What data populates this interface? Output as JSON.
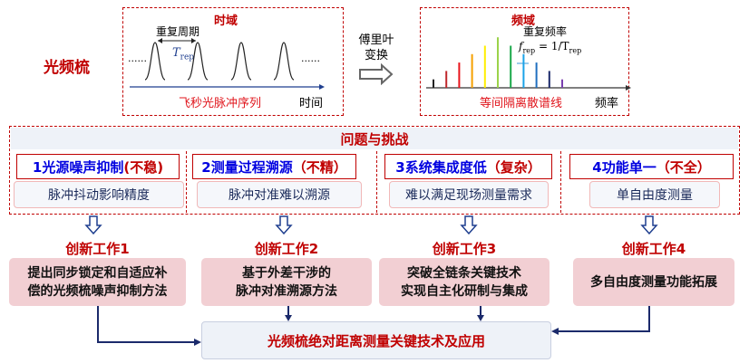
{
  "comb_label": "光频梳",
  "time_domain": {
    "title": "时域",
    "period_label": "重复周期",
    "period_symbol": "T",
    "period_sub": "rep",
    "series_label": "飞秒光脉冲序列",
    "axis_label": "时间",
    "dots": "......"
  },
  "transform": {
    "line1": "傅里叶",
    "line2": "变换"
  },
  "freq_domain": {
    "title": "频域",
    "rate_label": "重复频率",
    "rate_formula_f": "f",
    "rate_formula_sub": "rep",
    "rate_formula_rest": " = 1/T",
    "rate_formula_sub2": "rep",
    "lines_label": "等间隔离散谱线",
    "axis_label": "频率",
    "line_colors": [
      "#222222",
      "#c0282d",
      "#e8141b",
      "#f5a000",
      "#ffee00",
      "#9bd34a",
      "#1aa84a",
      "#1aa3e8",
      "#1f6fbf",
      "#1b2a6b",
      "#7a3fb0"
    ],
    "line_levels": [
      1,
      2,
      3,
      4,
      5,
      6,
      5,
      4,
      3,
      2,
      1
    ]
  },
  "challenges": {
    "title": "问题与挑战",
    "items": [
      {
        "label": "1光源噪声抑制",
        "tag": "(不稳)",
        "detail": "脉冲抖动影响精度"
      },
      {
        "label": "2测量过程溯源",
        "tag": "（不精）",
        "detail": "脉冲对准难以溯源"
      },
      {
        "label": "3系统集成度低",
        "tag": "（复杂）",
        "detail": "难以满足现场测量需求"
      },
      {
        "label": "4功能单一",
        "tag": "（不全）",
        "detail": "单自由度测量"
      }
    ]
  },
  "innovations": [
    {
      "title": "创新工作1",
      "line1": "提出同步锁定和自适应补",
      "line2": "偿的光频梳噪声抑制方法"
    },
    {
      "title": "创新工作2",
      "line1": "基于外差干涉的",
      "line2": "脉冲对准溯源方法"
    },
    {
      "title": "创新工作3",
      "line1": "突破全链条关键技术",
      "line2": "实现自主化研制与集成"
    },
    {
      "title": "创新工作4",
      "line1": "多自由度测量功能拓展",
      "line2": ""
    }
  ],
  "goal": "光频梳绝对距离测量关键技术及应用"
}
